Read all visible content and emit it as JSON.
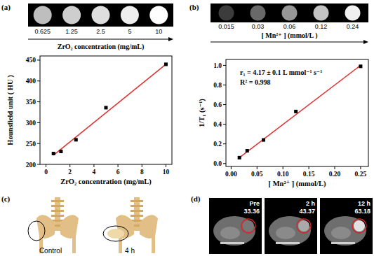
{
  "chart_data": [
    {
      "type": "scatter",
      "panel_label": "(a)",
      "phantom_labels": [
        0.625,
        1.25,
        2.5,
        5,
        10
      ],
      "phantom_title": "ZrO₂ concentration (mg/mL)",
      "x_label": "ZrO₂ concentration (mg/mL)",
      "y_label": "Hounsfield unit ( HU )",
      "series": [
        {
          "type": "scatter",
          "marker": "square",
          "color": "#000000",
          "x": [
            0.625,
            1.25,
            2.5,
            5,
            10
          ],
          "values": [
            226,
            231,
            259,
            336,
            440
          ]
        },
        {
          "type": "line",
          "color": "#e03030",
          "x": [
            0.625,
            10
          ],
          "values": [
            222,
            440
          ]
        }
      ],
      "xlim": [
        -0.5,
        10.5
      ],
      "xticks": [
        0,
        2,
        4,
        6,
        8,
        10
      ],
      "ylim": [
        200,
        460
      ],
      "yticks": [
        200,
        250,
        300,
        350,
        400,
        450
      ]
    },
    {
      "type": "scatter",
      "panel_label": "(b)",
      "phantom_labels": [
        0.015,
        0.03,
        0.06,
        0.12,
        0.24
      ],
      "phantom_title": "[ Mn²⁺ ] (mmol/L )",
      "x_label": "[ Mn²⁺ ] (mmol/L)",
      "y_label": "1/T₁ (s⁻¹)",
      "annotations": [
        "r₁ = 4.17 ± 0.1 L mmol⁻¹ s⁻¹",
        "R² = 0.998"
      ],
      "series": [
        {
          "type": "scatter",
          "marker": "square",
          "color": "#000000",
          "x": [
            0.016,
            0.031,
            0.0625,
            0.125,
            0.25
          ],
          "values": [
            0.06,
            0.13,
            0.24,
            0.53,
            0.99
          ]
        },
        {
          "type": "line",
          "color": "#e03030",
          "x": [
            0.016,
            0.25
          ],
          "values": [
            0.06,
            1.0
          ]
        }
      ],
      "xlim": [
        -0.01,
        0.265
      ],
      "xticks": [
        {
          "value": 0,
          "label": "0.00"
        },
        {
          "value": 0.05,
          "label": "0.05"
        },
        {
          "value": 0.1,
          "label": "0.10"
        },
        {
          "value": 0.15,
          "label": "0.15"
        },
        {
          "value": 0.2,
          "label": "0.20"
        },
        {
          "value": 0.25,
          "label": "0.25"
        }
      ],
      "ylim": [
        -0.03,
        1.06
      ],
      "yticks": [
        {
          "value": 0,
          "label": "0.0"
        },
        {
          "value": 0.2,
          "label": "0.2"
        },
        {
          "value": 0.4,
          "label": "0.4"
        },
        {
          "value": 0.6,
          "label": "0.6"
        },
        {
          "value": 0.8,
          "label": "0.8"
        },
        {
          "value": 1,
          "label": "1.0"
        }
      ]
    }
  ],
  "panels": [
    {
      "label": "(c)",
      "images": [
        {
          "caption": "Control"
        },
        {
          "caption": "4 h"
        }
      ]
    },
    {
      "label": "(d)",
      "images": [
        {
          "time": "Pre",
          "value": 33.36
        },
        {
          "time": "2 h",
          "value": 43.37
        },
        {
          "time": "12 h",
          "value": 63.18
        }
      ]
    }
  ]
}
